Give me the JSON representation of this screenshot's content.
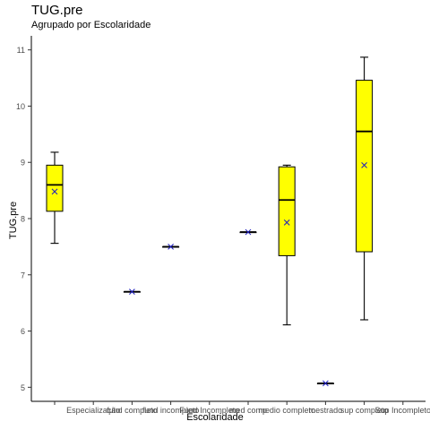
{
  "chart_data": {
    "type": "boxplot",
    "title": "TUG.pre",
    "subtitle": "Agrupado por Escolaridade",
    "xlabel": "Escolaridade",
    "ylabel": "TUG.pre",
    "categories": [
      "",
      "Especialização",
      "fund completo",
      "fund incompleto",
      "Fund Incompleto",
      "med comp",
      "medio completo",
      "mestrado",
      "sup completo",
      "Sup Incompleto"
    ],
    "yticks": [
      5,
      6,
      7,
      8,
      9,
      10,
      11
    ],
    "ylim": [
      4.75,
      11.25
    ],
    "grid": false,
    "box_fill": "#ffff00",
    "mean_marker_color": "#1f1fbf",
    "boxes": [
      {
        "category": "",
        "min": 7.56,
        "q1": 8.13,
        "median": 8.6,
        "q3": 8.95,
        "max": 9.18,
        "mean": 8.48
      },
      {
        "category": "fund completo",
        "min": 6.7,
        "q1": 6.7,
        "median": 6.7,
        "q3": 6.7,
        "max": 6.7,
        "mean": 6.7
      },
      {
        "category": "fund incompleto",
        "min": 7.5,
        "q1": 7.5,
        "median": 7.5,
        "q3": 7.5,
        "max": 7.5,
        "mean": 7.5
      },
      {
        "category": "med comp",
        "min": 7.76,
        "q1": 7.76,
        "median": 7.76,
        "q3": 7.76,
        "max": 7.76,
        "mean": 7.76
      },
      {
        "category": "medio completo",
        "min": 6.11,
        "q1": 7.34,
        "median": 8.33,
        "q3": 8.92,
        "max": 8.95,
        "mean": 7.93
      },
      {
        "category": "mestrado",
        "min": 5.07,
        "q1": 5.07,
        "median": 5.07,
        "q3": 5.07,
        "max": 5.07,
        "mean": 5.07
      },
      {
        "category": "sup completo",
        "min": 6.2,
        "q1": 7.41,
        "median": 9.55,
        "q3": 10.46,
        "max": 10.87,
        "mean": 8.95
      }
    ]
  }
}
